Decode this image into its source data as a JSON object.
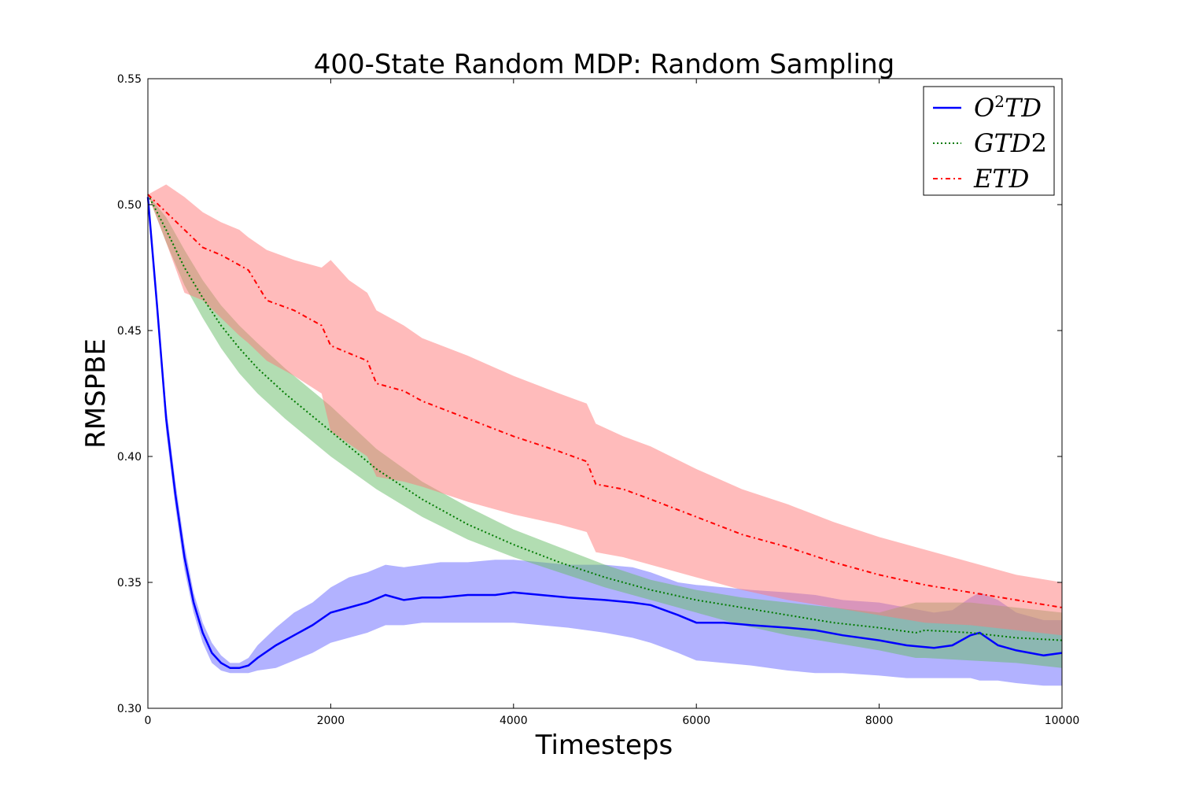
{
  "chart_data": {
    "type": "line",
    "title": "400-State Random MDP: Random Sampling",
    "xlabel": "Timesteps",
    "ylabel": "RMSPBE",
    "xlim": [
      0,
      10000
    ],
    "ylim": [
      0.3,
      0.55
    ],
    "xticks": [
      0,
      2000,
      4000,
      6000,
      8000,
      10000
    ],
    "xtick_labels": [
      "0",
      "2000",
      "4000",
      "6000",
      "8000",
      "10000"
    ],
    "yticks": [
      0.3,
      0.35,
      0.4,
      0.45,
      0.5,
      0.55
    ],
    "ytick_labels": [
      "0.30",
      "0.35",
      "0.40",
      "0.45",
      "0.50",
      "0.55"
    ],
    "grid": false,
    "legend_position": "top-right",
    "series": [
      {
        "name": "O2TD",
        "legend_base": "O",
        "legend_sup": "2",
        "legend_rest": "TD",
        "color": "#0000ff",
        "band_color": "#6666ff",
        "style": "solid",
        "x": [
          0,
          100,
          200,
          300,
          400,
          500,
          600,
          700,
          800,
          900,
          1000,
          1100,
          1200,
          1400,
          1600,
          1800,
          2000,
          2200,
          2400,
          2600,
          2800,
          3000,
          3200,
          3500,
          3800,
          4000,
          4300,
          4600,
          5000,
          5300,
          5500,
          5800,
          6000,
          6300,
          6600,
          7000,
          7300,
          7600,
          8000,
          8300,
          8600,
          8800,
          9000,
          9100,
          9300,
          9500,
          9800,
          10000
        ],
        "y": [
          0.503,
          0.46,
          0.415,
          0.385,
          0.36,
          0.342,
          0.33,
          0.322,
          0.318,
          0.316,
          0.316,
          0.317,
          0.32,
          0.325,
          0.329,
          0.333,
          0.338,
          0.34,
          0.342,
          0.345,
          0.343,
          0.344,
          0.344,
          0.345,
          0.345,
          0.346,
          0.345,
          0.344,
          0.343,
          0.342,
          0.341,
          0.337,
          0.334,
          0.334,
          0.333,
          0.332,
          0.331,
          0.329,
          0.327,
          0.325,
          0.324,
          0.325,
          0.329,
          0.33,
          0.325,
          0.323,
          0.321,
          0.322
        ],
        "lower": [
          0.503,
          0.458,
          0.41,
          0.38,
          0.355,
          0.338,
          0.326,
          0.318,
          0.315,
          0.314,
          0.314,
          0.314,
          0.315,
          0.316,
          0.319,
          0.322,
          0.326,
          0.328,
          0.33,
          0.333,
          0.333,
          0.334,
          0.334,
          0.334,
          0.334,
          0.334,
          0.333,
          0.332,
          0.33,
          0.328,
          0.326,
          0.322,
          0.319,
          0.318,
          0.317,
          0.315,
          0.314,
          0.314,
          0.313,
          0.312,
          0.312,
          0.312,
          0.312,
          0.311,
          0.311,
          0.31,
          0.309,
          0.309
        ],
        "upper": [
          0.503,
          0.462,
          0.42,
          0.39,
          0.365,
          0.346,
          0.334,
          0.326,
          0.321,
          0.318,
          0.318,
          0.32,
          0.325,
          0.332,
          0.338,
          0.342,
          0.348,
          0.352,
          0.354,
          0.357,
          0.356,
          0.357,
          0.358,
          0.358,
          0.359,
          0.359,
          0.358,
          0.357,
          0.357,
          0.356,
          0.354,
          0.35,
          0.349,
          0.348,
          0.347,
          0.346,
          0.345,
          0.343,
          0.342,
          0.34,
          0.338,
          0.339,
          0.344,
          0.346,
          0.343,
          0.338,
          0.335,
          0.335
        ]
      },
      {
        "name": "GTD2",
        "legend_base": "GTD",
        "legend_sup": "",
        "legend_rest": "2",
        "color": "#007a00",
        "band_color": "#66bb66",
        "style": "dotted",
        "x": [
          0,
          200,
          400,
          600,
          800,
          1000,
          1200,
          1500,
          2000,
          2500,
          3000,
          3500,
          4000,
          4500,
          5000,
          5500,
          6000,
          6500,
          7000,
          7500,
          8000,
          8400,
          8500,
          9000,
          9500,
          10000
        ],
        "y": [
          0.504,
          0.49,
          0.475,
          0.463,
          0.452,
          0.443,
          0.435,
          0.425,
          0.41,
          0.395,
          0.383,
          0.373,
          0.365,
          0.358,
          0.352,
          0.347,
          0.343,
          0.34,
          0.337,
          0.334,
          0.332,
          0.33,
          0.331,
          0.33,
          0.328,
          0.327
        ],
        "lower": [
          0.504,
          0.485,
          0.468,
          0.455,
          0.443,
          0.433,
          0.425,
          0.415,
          0.4,
          0.387,
          0.376,
          0.367,
          0.36,
          0.354,
          0.348,
          0.343,
          0.338,
          0.333,
          0.329,
          0.326,
          0.323,
          0.32,
          0.32,
          0.319,
          0.318,
          0.316
        ],
        "upper": [
          0.504,
          0.495,
          0.482,
          0.47,
          0.46,
          0.452,
          0.445,
          0.435,
          0.42,
          0.403,
          0.39,
          0.38,
          0.371,
          0.364,
          0.357,
          0.351,
          0.347,
          0.344,
          0.342,
          0.34,
          0.338,
          0.342,
          0.342,
          0.342,
          0.34,
          0.338
        ]
      },
      {
        "name": "ETD",
        "legend_base": "ETD",
        "legend_sup": "",
        "legend_rest": "",
        "color": "#ff0000",
        "band_color": "#ff7777",
        "style": "dashdot",
        "x": [
          0,
          200,
          400,
          600,
          800,
          1000,
          1100,
          1300,
          1600,
          1900,
          2000,
          2200,
          2400,
          2500,
          2800,
          3000,
          3500,
          4000,
          4500,
          4800,
          4900,
          5200,
          5500,
          6000,
          6500,
          7000,
          7500,
          8000,
          8500,
          9000,
          9500,
          10000
        ],
        "y": [
          0.504,
          0.497,
          0.49,
          0.483,
          0.48,
          0.476,
          0.474,
          0.462,
          0.458,
          0.452,
          0.444,
          0.441,
          0.438,
          0.429,
          0.426,
          0.422,
          0.415,
          0.408,
          0.402,
          0.398,
          0.389,
          0.387,
          0.383,
          0.376,
          0.369,
          0.364,
          0.358,
          0.353,
          0.349,
          0.346,
          0.343,
          0.34
        ],
        "lower": [
          0.504,
          0.485,
          0.465,
          0.462,
          0.455,
          0.448,
          0.445,
          0.438,
          0.432,
          0.425,
          0.41,
          0.405,
          0.4,
          0.392,
          0.39,
          0.388,
          0.382,
          0.377,
          0.373,
          0.37,
          0.362,
          0.36,
          0.357,
          0.352,
          0.347,
          0.343,
          0.34,
          0.337,
          0.334,
          0.333,
          0.331,
          0.329
        ],
        "upper": [
          0.504,
          0.508,
          0.503,
          0.497,
          0.493,
          0.49,
          0.487,
          0.482,
          0.478,
          0.475,
          0.478,
          0.47,
          0.465,
          0.458,
          0.452,
          0.447,
          0.44,
          0.432,
          0.425,
          0.421,
          0.413,
          0.408,
          0.404,
          0.395,
          0.387,
          0.381,
          0.374,
          0.368,
          0.363,
          0.358,
          0.353,
          0.35
        ]
      }
    ]
  }
}
